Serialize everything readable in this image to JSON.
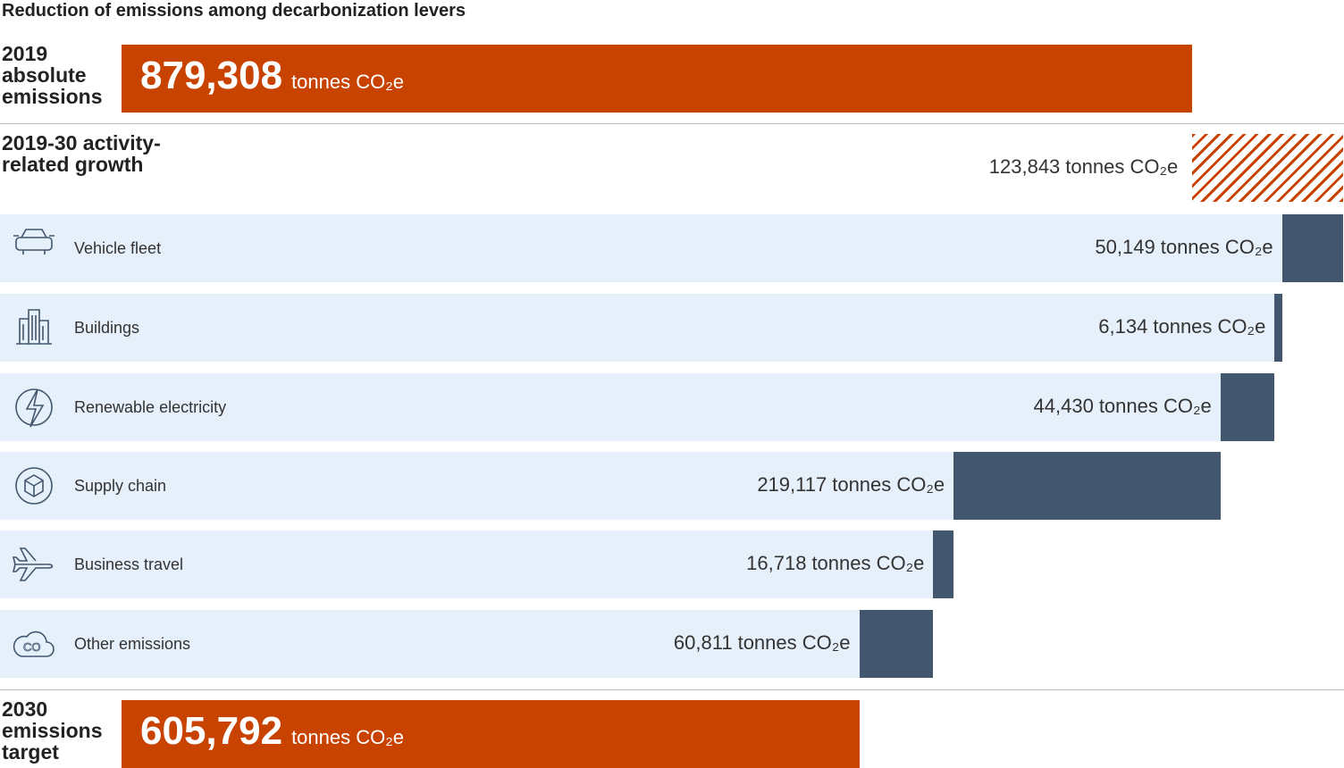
{
  "chart_data": {
    "type": "waterfall",
    "title": "Reduction of emissions among decarbonization levers",
    "unit": "tonnes CO₂e",
    "categories": [
      "2019 absolute emissions",
      "2019-30 activity-related growth",
      "Vehicle fleet",
      "Buildings",
      "Renewable electricity",
      "Supply chain",
      "Business travel",
      "Other emissions",
      "2030 emissions target"
    ],
    "kinds": [
      "total",
      "increase",
      "decrease",
      "decrease",
      "decrease",
      "decrease",
      "decrease",
      "decrease",
      "total"
    ],
    "values": [
      879308,
      123843,
      50149,
      6134,
      44430,
      219117,
      16718,
      60811,
      605792
    ],
    "value_labels": [
      "879,308",
      "123,843",
      "50,149",
      "6,134",
      "44,430",
      "219,117",
      "16,718",
      "60,811",
      "605,792"
    ],
    "colors": {
      "total": "#c84300",
      "increase": "#c84300",
      "decrease": "#42566e",
      "background": "#e6f0fa"
    }
  }
}
